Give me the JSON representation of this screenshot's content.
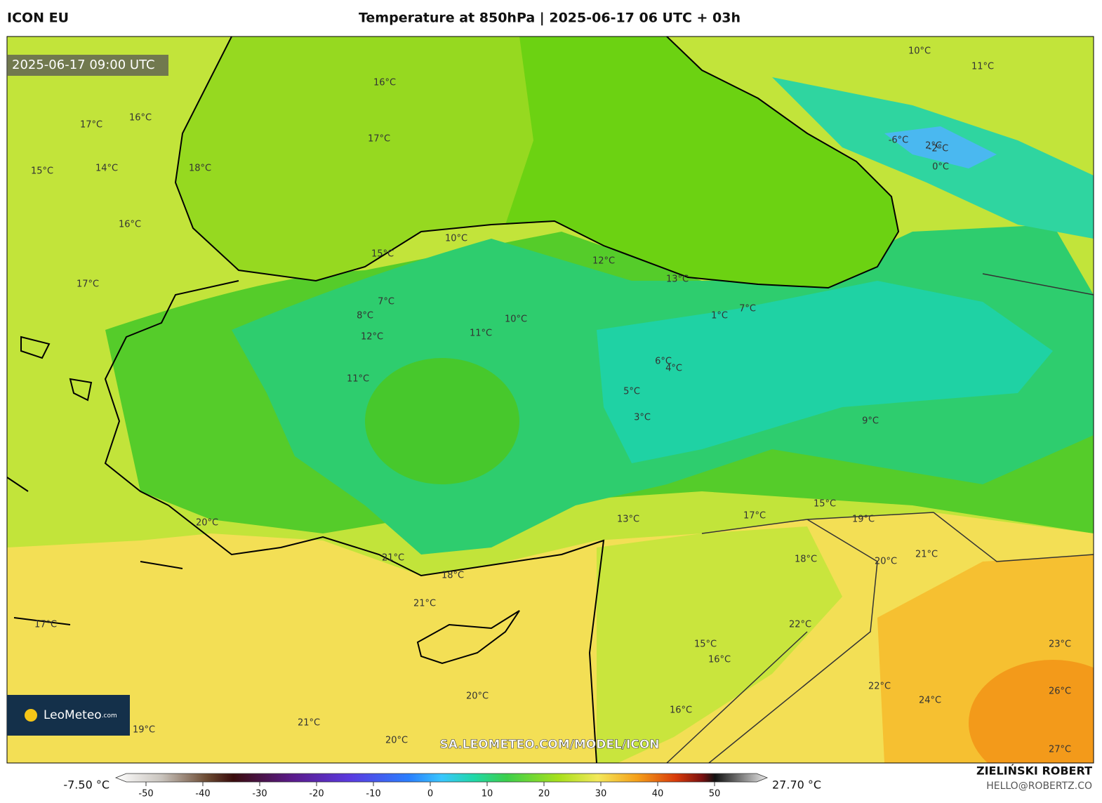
{
  "header": {
    "model": "ICON EU",
    "title": "Temperature at 850hPa | 2025-06-17 06 UTC + 03h"
  },
  "map": {
    "timestamp": "2025-06-17 09:00 UTC",
    "contour_labels": [
      "16°C",
      "17°C",
      "18°C",
      "16°C",
      "17°C",
      "14°C",
      "15°C",
      "16°C",
      "17°C",
      "15°C",
      "12°C",
      "13°C",
      "10°C",
      "11°C",
      "8°C",
      "7°C",
      "12°C",
      "10°C",
      "11°C",
      "5°C",
      "3°C",
      "4°C",
      "6°C",
      "2°C",
      "0°C",
      "1°C",
      "7°C",
      "9°C",
      "15°C",
      "17°C",
      "19°C",
      "20°C",
      "21°C",
      "18°C",
      "21°C",
      "20°C",
      "19°C",
      "21°C",
      "20°C",
      "16°C",
      "15°C",
      "22°C",
      "24°C",
      "26°C",
      "27°C",
      "23°C",
      "21°C",
      "22°C",
      "18°C",
      "17°C",
      "16°C",
      "20°C",
      "13°C",
      "10°C",
      "11°C",
      "-2°C",
      "-6°C"
    ],
    "logo": "LeoMeteo",
    "logo_suffix": ".com",
    "url": "SA.LEOMETEO.COM/MODEL/ICON"
  },
  "colorbar": {
    "min_label": "-7.50 °C",
    "max_label": "27.70 °C",
    "ticks": [
      -50,
      -40,
      -30,
      -20,
      -10,
      0,
      10,
      20,
      30,
      40,
      50
    ]
  },
  "footer": {
    "author": "ZIELIŃSKI ROBERT",
    "email": "HELLO@ROBERTZ.CO"
  }
}
